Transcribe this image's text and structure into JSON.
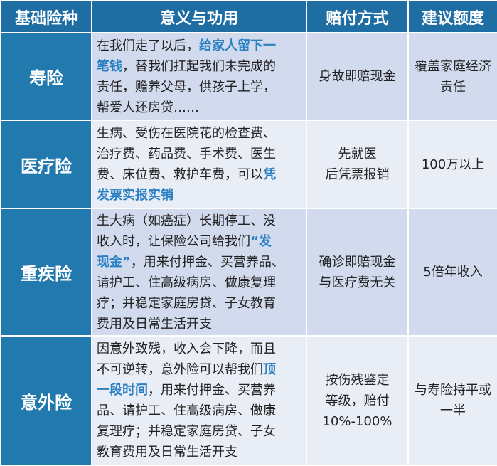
{
  "colors": {
    "header_bg": "#1f6ea3",
    "name_bg": "#2179ae",
    "row_odd_bg": "#d2dbee",
    "row_even_bg": "#e9edf6",
    "highlight_text": "#2a80c2"
  },
  "headers": [
    "基础险种",
    "意义与功用",
    "赔付方式",
    "建议额度"
  ],
  "rows": [
    {
      "name": "寿险",
      "meaning": [
        [
          {
            "t": "在我们走了以后，"
          },
          {
            "t": "给家人留下一",
            "hl": true
          }
        ],
        [
          {
            "t": "笔钱",
            "hl": true
          },
          {
            "t": "，替我们扛起我们未完成的"
          }
        ],
        [
          {
            "t": "责任，赡养父母，供孩子上学，"
          }
        ],
        [
          {
            "t": "帮爱人还房贷……"
          }
        ]
      ],
      "payout": [
        "身故即赔现金"
      ],
      "amount": [
        "覆盖家庭经济",
        "责任"
      ]
    },
    {
      "name": "医疗险",
      "meaning": [
        [
          {
            "t": "生病、受伤在医院花的检查费、"
          }
        ],
        [
          {
            "t": "治疗费、药品费、手术费、医生"
          }
        ],
        [
          {
            "t": "费、床位费、救护车费，可以"
          },
          {
            "t": "凭",
            "hl": true
          }
        ],
        [
          {
            "t": "发票实报实销",
            "hl": true
          }
        ]
      ],
      "payout": [
        "先就医",
        "后凭票报销"
      ],
      "amount": [
        "100万以上"
      ]
    },
    {
      "name": "重疾险",
      "meaning": [
        [
          {
            "t": "生大病（如癌症）长期停工、没"
          }
        ],
        [
          {
            "t": "收入时，让保险公司给我们"
          },
          {
            "t": "“发",
            "hl": true
          }
        ],
        [
          {
            "t": "现金”",
            "hl": true
          },
          {
            "t": "，用来付押金、买营养品、"
          }
        ],
        [
          {
            "t": "请护工、住高级病房、做康复理"
          }
        ],
        [
          {
            "t": "疗；并稳定家庭房贷、子女教育"
          }
        ],
        [
          {
            "t": "费用及日常生活开支"
          }
        ]
      ],
      "payout": [
        "确诊即赔现金",
        "与医疗费无关"
      ],
      "amount": [
        "5倍年收入"
      ]
    },
    {
      "name": "意外险",
      "meaning": [
        [
          {
            "t": "因意外致残，收入会下降，而且"
          }
        ],
        [
          {
            "t": "不可逆转，意外险可以帮我们"
          },
          {
            "t": "顶",
            "hl": true
          }
        ],
        [
          {
            "t": "一段时间",
            "hl": true
          },
          {
            "t": "，用来付押金、买营养"
          }
        ],
        [
          {
            "t": "品、请护工、住高级病房、做康"
          }
        ],
        [
          {
            "t": "复理疗；并稳定家庭房贷、子女"
          }
        ],
        [
          {
            "t": "教育费用及日常生活开支"
          }
        ]
      ],
      "payout": [
        "按伤残鉴定",
        "等级，赔付",
        "10%-100%"
      ],
      "amount": [
        "与寿险持平或",
        "一半"
      ]
    }
  ]
}
